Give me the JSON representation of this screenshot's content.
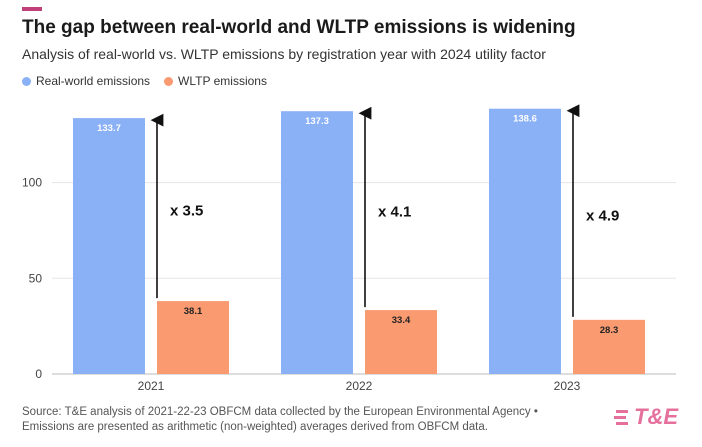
{
  "title": "The gap between real-world and WLTP emissions is widening",
  "subtitle": "Analysis of real-world vs. WLTP emissions by registration year with 2024 utility factor",
  "colors": {
    "real_world": "#8ab0f5",
    "wltp": "#fa9a70",
    "accent": "#c0407a",
    "logo": "#e5709c"
  },
  "chart_data": {
    "type": "bar",
    "categories": [
      "2021",
      "2022",
      "2023"
    ],
    "series": [
      {
        "name": "Real-world emissions",
        "values": [
          133.7,
          137.3,
          138.6
        ],
        "color": "#8ab0f5"
      },
      {
        "name": "WLTP emissions",
        "values": [
          38.1,
          33.4,
          28.3
        ],
        "color": "#fa9a70"
      }
    ],
    "ratio_labels": [
      "x 3.5",
      "x 4.1",
      "x 4.9"
    ],
    "yticks": [
      0,
      50,
      100
    ],
    "ylim": [
      0,
      140
    ],
    "grid": true,
    "legend": "top-left"
  },
  "footer": {
    "line1": "Source: T&E analysis of 2021-22-23 OBFCM data collected by the European Environmental Agency •",
    "line2": "Emissions are presented as arithmetic (non-weighted) averages derived from OBFCM data."
  },
  "logo": {
    "text": "T&E",
    "icon": "stacked-lines-icon"
  }
}
